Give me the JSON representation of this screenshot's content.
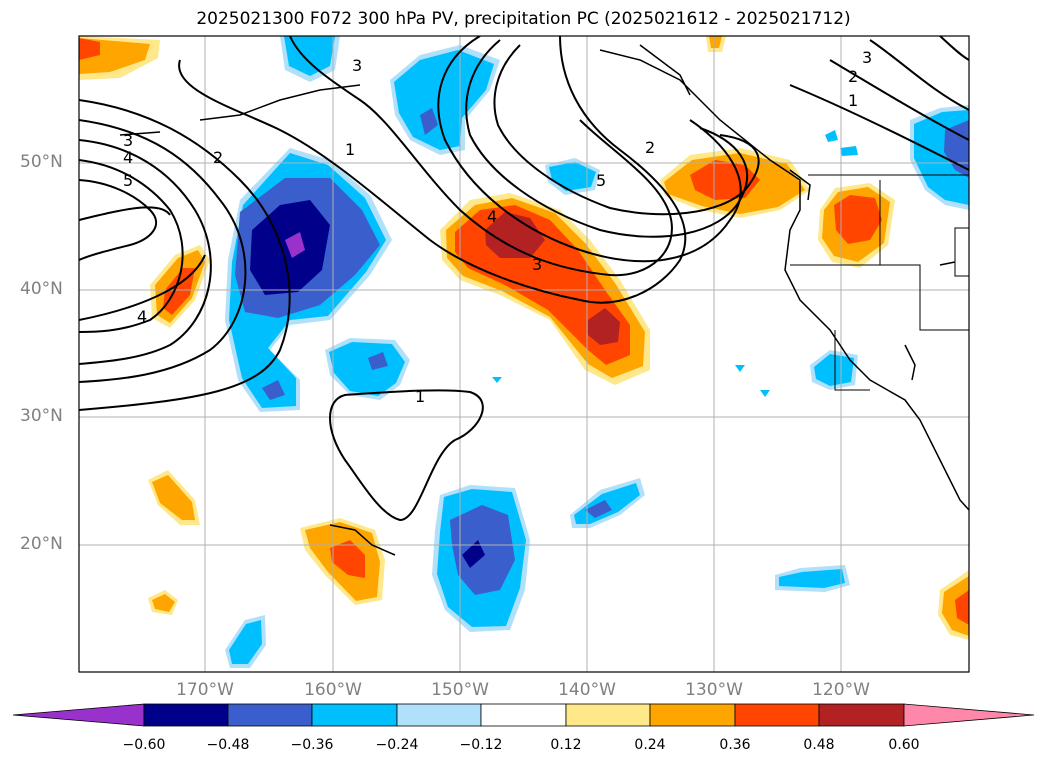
{
  "title": "2025021300 F072 300 hPa PV, precipitation PC (2025021612 - 2025021712)",
  "map": {
    "lat_labels": [
      "50°N",
      "40°N",
      "30°N",
      "20°N"
    ],
    "lon_labels": [
      "170°W",
      "160°W",
      "150°W",
      "140°W",
      "130°W",
      "120°W"
    ],
    "contour_labels": [
      "3",
      "4",
      "5",
      "2",
      "1",
      "4",
      "1",
      "4",
      "3",
      "2",
      "5",
      "3",
      "2",
      "1",
      "3"
    ]
  },
  "colorbar": {
    "ticks": [
      "−0.60",
      "−0.48",
      "−0.36",
      "−0.24",
      "−0.12",
      "0.12",
      "0.24",
      "0.36",
      "0.48",
      "0.60"
    ],
    "colors": [
      "#9932cc",
      "#00008b",
      "#3a5fcd",
      "#00bfff",
      "#b0e0fa",
      "#ffffff",
      "#ffe88a",
      "#ffa500",
      "#ff4500",
      "#b22222",
      "#ff88aa"
    ]
  }
}
